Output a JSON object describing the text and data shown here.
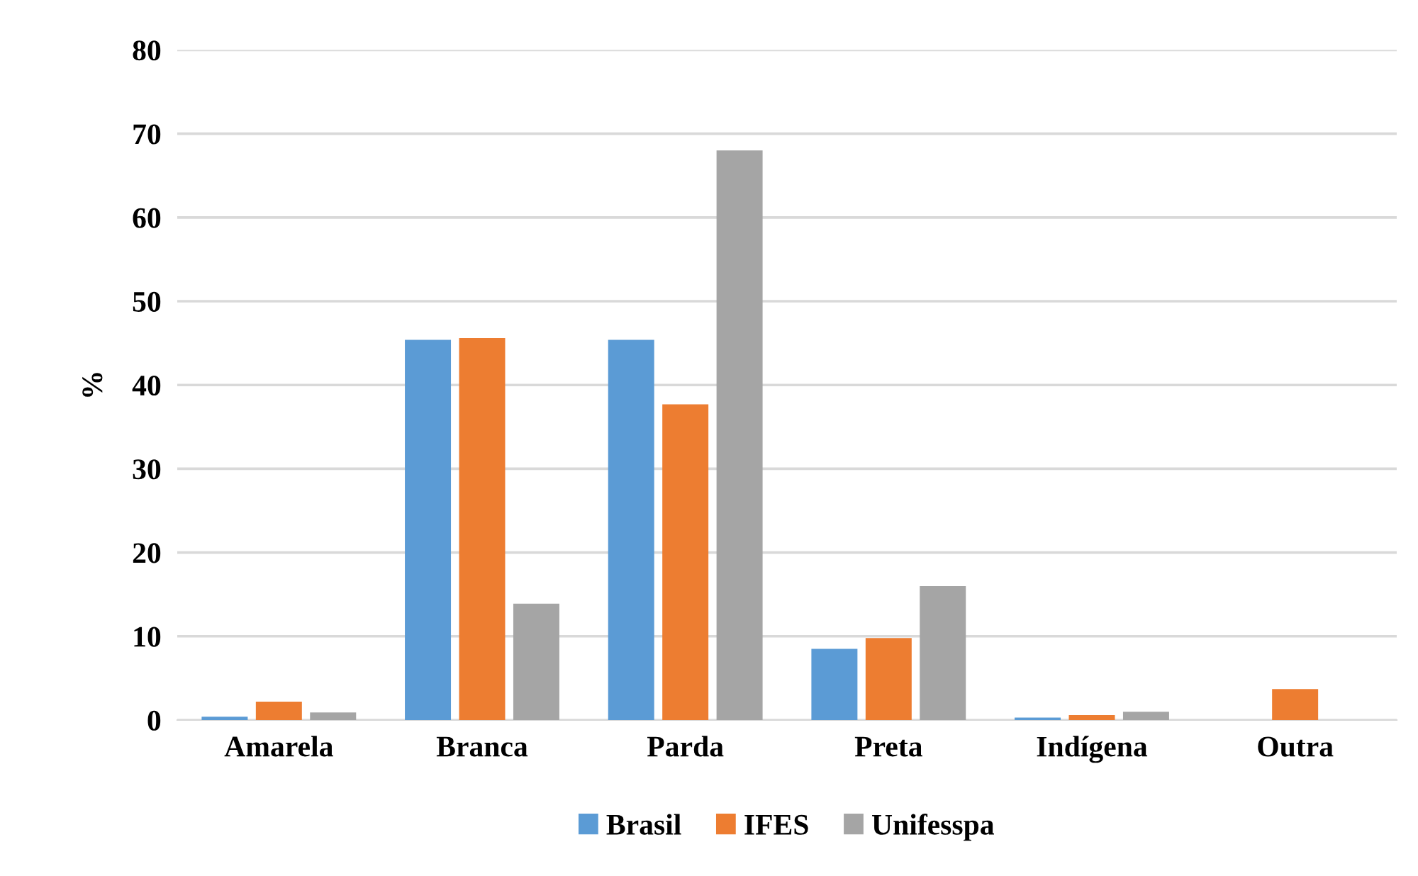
{
  "chart_data": {
    "type": "bar",
    "ylabel": "%",
    "categories": [
      "Amarela",
      "Branca",
      "Parda",
      "Preta",
      "Indígena",
      "Outra"
    ],
    "series": [
      {
        "name": "Brasil",
        "color": "#5b9bd5",
        "values": [
          0.4,
          45.4,
          45.4,
          8.5,
          0.3,
          null
        ]
      },
      {
        "name": "IFES",
        "color": "#ed7d31",
        "values": [
          2.2,
          45.6,
          37.7,
          9.8,
          0.6,
          3.7
        ]
      },
      {
        "name": "Unifesspa",
        "color": "#a5a5a5",
        "values": [
          0.9,
          13.9,
          68,
          16,
          1.0,
          null
        ]
      }
    ],
    "ylim": [
      0,
      80
    ],
    "yticks": [
      0,
      10,
      20,
      30,
      40,
      50,
      60,
      70,
      80
    ],
    "grid": "y",
    "legend": "bottom"
  }
}
